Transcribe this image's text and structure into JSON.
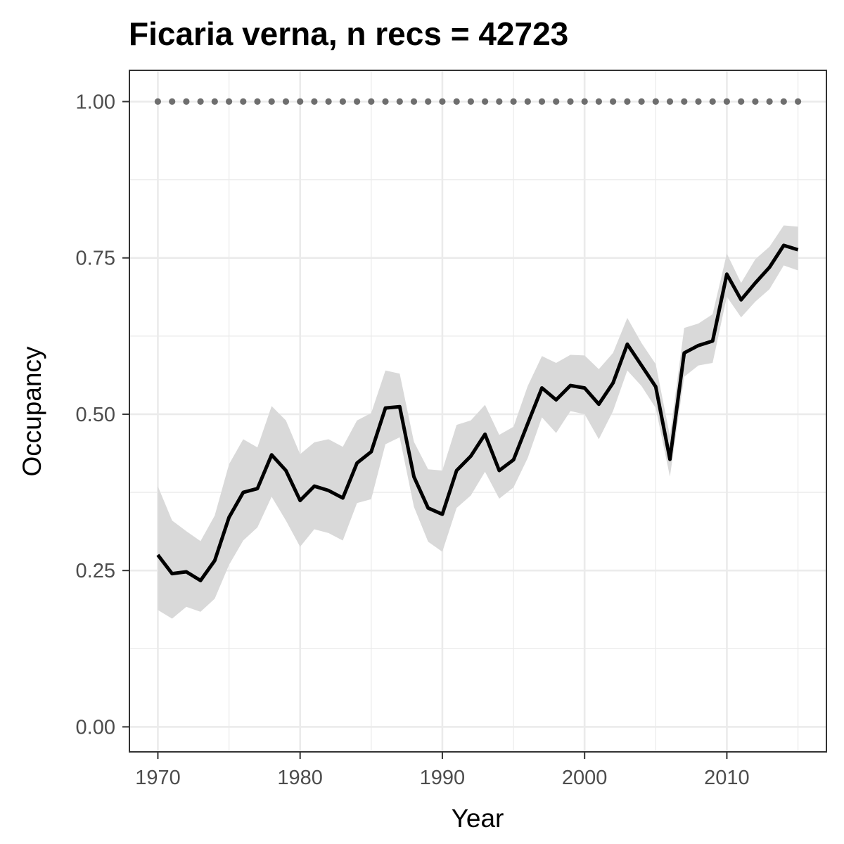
{
  "chart_data": {
    "type": "line",
    "title": "Ficaria verna, n recs = 42723",
    "xlabel": "Year",
    "ylabel": "Occupancy",
    "xlim": [
      1968,
      2017
    ],
    "ylim": [
      -0.04,
      1.05
    ],
    "x_ticks": [
      1970,
      1980,
      1990,
      2000,
      2010
    ],
    "x_tick_labels": [
      "1970",
      "1980",
      "1990",
      "2000",
      "2010"
    ],
    "y_ticks": [
      0,
      0.25,
      0.5,
      0.75,
      1.0
    ],
    "y_tick_labels": [
      "0.00",
      "0.25",
      "0.50",
      "0.75",
      "1.00"
    ],
    "grid": true,
    "years": [
      1970,
      1971,
      1972,
      1973,
      1974,
      1975,
      1976,
      1977,
      1978,
      1979,
      1980,
      1981,
      1982,
      1983,
      1984,
      1985,
      1986,
      1987,
      1988,
      1989,
      1990,
      1991,
      1992,
      1993,
      1994,
      1995,
      1996,
      1997,
      1998,
      1999,
      2000,
      2001,
      2002,
      2003,
      2004,
      2005,
      2006,
      2007,
      2008,
      2009,
      2010,
      2011,
      2012,
      2013,
      2014,
      2015
    ],
    "occupancy_mean": [
      0.275,
      0.245,
      0.248,
      0.234,
      0.266,
      0.335,
      0.375,
      0.381,
      0.435,
      0.41,
      0.362,
      0.385,
      0.378,
      0.366,
      0.422,
      0.44,
      0.51,
      0.512,
      0.4,
      0.35,
      0.34,
      0.41,
      0.433,
      0.468,
      0.41,
      0.427,
      0.485,
      0.542,
      0.523,
      0.546,
      0.542,
      0.516,
      0.55,
      0.612,
      0.578,
      0.544,
      0.428,
      0.598,
      0.61,
      0.617,
      0.724,
      0.683,
      0.71,
      0.735,
      0.77,
      0.763
    ],
    "ci_lower": [
      0.187,
      0.173,
      0.192,
      0.184,
      0.205,
      0.259,
      0.298,
      0.319,
      0.368,
      0.33,
      0.288,
      0.316,
      0.31,
      0.298,
      0.358,
      0.364,
      0.452,
      0.463,
      0.352,
      0.296,
      0.28,
      0.35,
      0.37,
      0.408,
      0.365,
      0.383,
      0.43,
      0.495,
      0.47,
      0.505,
      0.5,
      0.46,
      0.505,
      0.57,
      0.545,
      0.51,
      0.4,
      0.56,
      0.578,
      0.582,
      0.688,
      0.655,
      0.68,
      0.7,
      0.738,
      0.73
    ],
    "ci_upper": [
      0.385,
      0.33,
      0.313,
      0.297,
      0.338,
      0.42,
      0.46,
      0.447,
      0.513,
      0.49,
      0.436,
      0.455,
      0.46,
      0.448,
      0.49,
      0.502,
      0.57,
      0.565,
      0.456,
      0.412,
      0.41,
      0.483,
      0.49,
      0.515,
      0.467,
      0.48,
      0.545,
      0.593,
      0.582,
      0.595,
      0.594,
      0.572,
      0.598,
      0.654,
      0.614,
      0.58,
      0.465,
      0.638,
      0.645,
      0.66,
      0.757,
      0.71,
      0.748,
      0.768,
      0.802,
      0.8
    ],
    "reference_points": {
      "value": 1.0,
      "years": [
        1970,
        1971,
        1972,
        1973,
        1974,
        1975,
        1976,
        1977,
        1978,
        1979,
        1980,
        1981,
        1982,
        1983,
        1984,
        1985,
        1986,
        1987,
        1988,
        1989,
        1990,
        1991,
        1992,
        1993,
        1994,
        1995,
        1996,
        1997,
        1998,
        1999,
        2000,
        2001,
        2002,
        2003,
        2004,
        2005,
        2006,
        2007,
        2008,
        2009,
        2010,
        2011,
        2012,
        2013,
        2014,
        2015
      ]
    },
    "colors": {
      "line": "#000000",
      "ribbon": "#d9d9d9",
      "points": "#6e6e6e",
      "grid": "#ebebeb",
      "panel_border": "#333333"
    }
  }
}
